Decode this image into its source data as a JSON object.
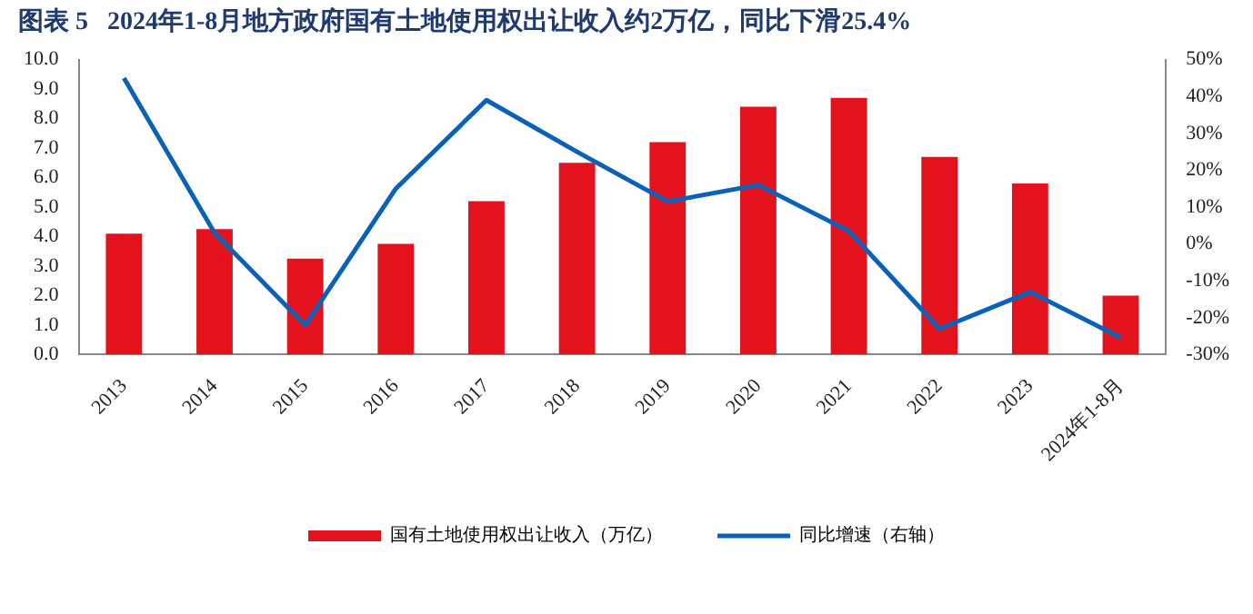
{
  "chart_data": {
    "type": "bar",
    "title": "图表 5   2024年1-8月地方政府国有土地使用权出让收入约2万亿，同比下滑25.4%",
    "categories": [
      "2013",
      "2014",
      "2015",
      "2016",
      "2017",
      "2018",
      "2019",
      "2020",
      "2021",
      "2022",
      "2023",
      "2024年1-8月"
    ],
    "series": [
      {
        "name": "国有土地使用权出让收入（万亿）",
        "color": "#e3121d",
        "values": [
          4.1,
          4.25,
          3.25,
          3.75,
          5.2,
          6.5,
          7.2,
          8.4,
          8.7,
          6.7,
          5.8,
          2.0
        ]
      },
      {
        "name": "同比增速（右轴）",
        "type": "line",
        "axis": "y2",
        "color": "#0a62b8",
        "values": [
          45,
          3,
          -22,
          15,
          39,
          25,
          11.5,
          16,
          3.5,
          -23,
          -13,
          -25.4
        ]
      }
    ],
    "ylim": [
      0,
      10
    ],
    "yticks": [
      {
        "value": 0,
        "label": "0.0"
      },
      {
        "value": 1,
        "label": "1.0"
      },
      {
        "value": 2,
        "label": "2.0"
      },
      {
        "value": 3,
        "label": "3.0"
      },
      {
        "value": 4,
        "label": "4.0"
      },
      {
        "value": 5,
        "label": "5.0"
      },
      {
        "value": 6,
        "label": "6.0"
      },
      {
        "value": 7,
        "label": "7.0"
      },
      {
        "value": 8,
        "label": "8.0"
      },
      {
        "value": 9,
        "label": "9.0"
      },
      {
        "value": 10,
        "label": "10.0"
      }
    ],
    "y2lim": [
      -30,
      50
    ],
    "y2ticks": [
      {
        "value": -30,
        "label": "-30%"
      },
      {
        "value": -20,
        "label": "-20%"
      },
      {
        "value": -10,
        "label": "-10%"
      },
      {
        "value": 0,
        "label": "0%"
      },
      {
        "value": 10,
        "label": "10%"
      },
      {
        "value": 20,
        "label": "20%"
      },
      {
        "value": 30,
        "label": "30%"
      },
      {
        "value": 40,
        "label": "40%"
      },
      {
        "value": 50,
        "label": "50%"
      }
    ],
    "grid": false,
    "legend": "bottom",
    "marker": "none"
  }
}
